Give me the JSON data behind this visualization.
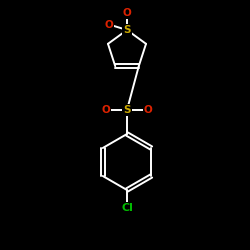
{
  "background_color": "#000000",
  "bond_color": "#ffffff",
  "atom_colors": {
    "S_ring": "#ccaa00",
    "S_sulfonyl": "#ccaa00",
    "O": "#dd2200",
    "Cl": "#00bb00",
    "C": "#ffffff"
  },
  "figsize": [
    2.5,
    2.5
  ],
  "dpi": 100,
  "lw": 1.4
}
